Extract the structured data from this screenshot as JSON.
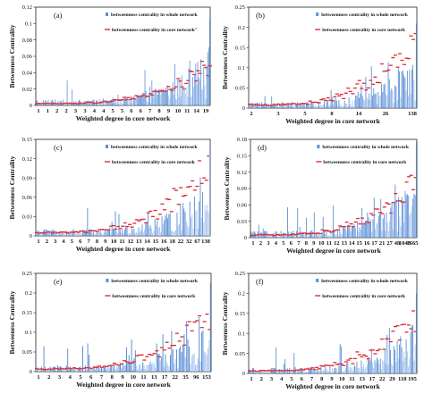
{
  "legend_labels": {
    "whole": "betweenness centrality in whole network",
    "core": "betweenness centrality in core network",
    "core_a": "betweenness centrality in core network\""
  },
  "colors": {
    "whole_bar": "#5b8fd6",
    "whole_bar_light": "#a9c6ef",
    "core_marker": "#e0292e",
    "axis": "#222222"
  },
  "chart_data": [
    {
      "type": "bar",
      "panel": "(a)",
      "xlabel": "Weighted degree in core network",
      "ylabel": "Betweeness Centrality",
      "ylim": [
        0,
        0.12
      ],
      "yticks": [
        "0",
        "0.02",
        "0.04",
        "0.06",
        "0.08",
        "0.1",
        "0.12"
      ],
      "xticks": [
        "1",
        "1",
        "2",
        "2",
        "3",
        "3",
        "4",
        "4",
        "5",
        "5",
        "6",
        "6",
        "7",
        "8",
        "9",
        "10",
        "11",
        "14",
        "19"
      ],
      "series": [
        {
          "name": "betweenness centrality in whole network",
          "values_range": [
            0,
            0.105
          ]
        },
        {
          "name": "betweenness centrality in core network\"",
          "values_range": [
            0,
            0.055
          ]
        }
      ],
      "legend_key": "core_a"
    },
    {
      "type": "bar",
      "panel": "(b)",
      "xlabel": "Weighted degree in core network",
      "ylabel": "Betweeness Centrality",
      "ylim": [
        0,
        0.25
      ],
      "yticks": [
        "0",
        "0.05",
        "0.1",
        "0.15",
        "0.2",
        "0.25"
      ],
      "xticks": [
        "2",
        "3",
        "5",
        "8",
        "14",
        "26",
        "138"
      ],
      "series": [
        {
          "name": "betweenness centrality in whole network",
          "values_range": [
            0,
            0.21
          ]
        },
        {
          "name": "betweenness centrality in core network",
          "values_range": [
            0.005,
            0.2
          ]
        }
      ],
      "legend_key": "core"
    },
    {
      "type": "bar",
      "panel": "(c)",
      "xlabel": "Weighted degree in core network",
      "ylabel": "Betweeness Centrality",
      "ylim": [
        0,
        0.15
      ],
      "yticks": [
        "0",
        "0.03",
        "0.06",
        "0.09",
        "0.12",
        "0.15"
      ],
      "xticks": [
        "1",
        "2",
        "3",
        "4",
        "5",
        "6",
        "7",
        "8",
        "9",
        "10",
        "11",
        "12",
        "13",
        "14",
        "15",
        "16",
        "18",
        "22",
        "32",
        "67",
        "138"
      ],
      "series": [
        {
          "name": "betweenness centrality in whole network",
          "values_range": [
            0,
            0.145
          ]
        },
        {
          "name": "betweenness centrality in core network",
          "values_range": [
            0,
            0.125
          ]
        }
      ],
      "legend_key": "core"
    },
    {
      "type": "bar",
      "panel": "(d)",
      "xlabel": "Weighted degree in core network",
      "ylabel": "Betweeness Centrality",
      "ylim": [
        0,
        0.18
      ],
      "yticks": [
        "0",
        "0.03",
        "0.06",
        "0.09",
        "0.12",
        "0.15",
        "0.18"
      ],
      "xticks": [
        "1",
        "2",
        "3",
        "4",
        "5",
        "6",
        "7",
        "8",
        "9",
        "10",
        "11",
        "12",
        "13",
        "14",
        "15",
        "16",
        "17",
        "21",
        "27",
        "48",
        "1043",
        "1665"
      ],
      "series": [
        {
          "name": "betweenness centrality in whole network",
          "values_range": [
            0,
            0.175
          ]
        },
        {
          "name": "betweenness centrality in core network",
          "values_range": [
            0,
            0.12
          ]
        }
      ],
      "legend_key": "core"
    },
    {
      "type": "bar",
      "panel": "(e)",
      "xlabel": "Weighted degree in core network",
      "ylabel": "Betweeness Centrality",
      "ylim": [
        0,
        0.25
      ],
      "yticks": [
        "0",
        "0.05",
        "0.1",
        "0.15",
        "0.2",
        "0.25"
      ],
      "xticks": [
        "1",
        "2",
        "3",
        "4",
        "5",
        "6",
        "7",
        "8",
        "9",
        "10",
        "11",
        "13",
        "17",
        "22",
        "35",
        "96",
        "153"
      ],
      "series": [
        {
          "name": "betweenness centrality in whole network",
          "values_range": [
            0,
            0.225
          ]
        },
        {
          "name": "betweenness centrality in core network",
          "values_range": [
            0,
            0.17
          ]
        }
      ],
      "legend_key": "core"
    },
    {
      "type": "bar",
      "panel": "(f)",
      "xlabel": "Weighted degree in core network",
      "ylabel": "Betweeness Centrality",
      "ylim": [
        0,
        0.25
      ],
      "yticks": [
        "0",
        "0.05",
        "0.1",
        "0.15",
        "0.2",
        "0.25"
      ],
      "xticks": [
        "1",
        "2",
        "3",
        "4",
        "5",
        "6",
        "7",
        "8",
        "9",
        "10",
        "11",
        "13",
        "17",
        "22",
        "29",
        "118",
        "195"
      ],
      "series": [
        {
          "name": "betweenness centrality in whole network",
          "values_range": [
            0,
            0.2
          ]
        },
        {
          "name": "betweenness centrality in core network",
          "values_range": [
            0,
            0.16
          ]
        }
      ],
      "legend_key": "core"
    }
  ]
}
